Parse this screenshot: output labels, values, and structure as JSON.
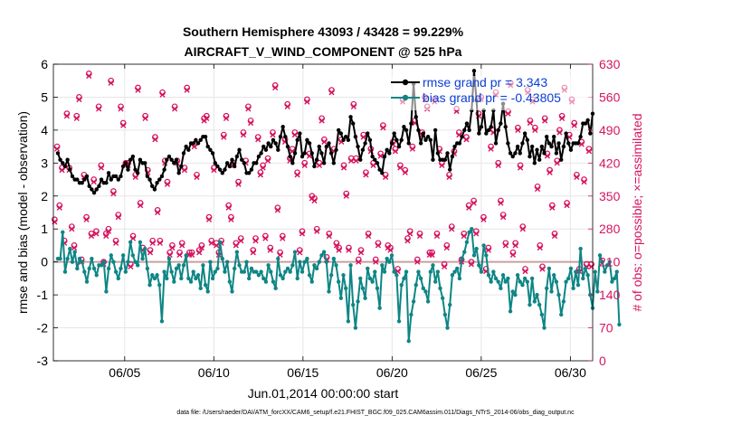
{
  "chart_data": {
    "type": "line",
    "title_line1": "Southern Hemisphere 43093 / 43428 = 99.229%",
    "title_line2": "AIRCRAFT_V_WIND_COMPONENT @ 525 hPa",
    "xlabel": "Jun.01,2014 00:00:00 start",
    "ylabel_left": "rmse and bias (model - observation)",
    "ylabel_right": "# of obs: o=possible; ×=assimilated",
    "footer": "data file: /Users/raeder/DAI/ATM_forcXX/CAM6_setup/f.e21.FHIST_BGC.f09_025.CAM6assim.011/Diags_NTrS_2014-06/obs_diag_output.nc",
    "xlim": [
      1,
      31.25
    ],
    "ylim_left": [
      -3,
      6
    ],
    "ylim_right": [
      0,
      630
    ],
    "x_ticks": [
      5,
      10,
      15,
      20,
      25,
      30
    ],
    "x_tick_labels": [
      "06/05",
      "06/10",
      "06/15",
      "06/20",
      "06/25",
      "06/30"
    ],
    "y_left_ticks": [
      -3,
      -2,
      -1,
      0,
      1,
      2,
      3,
      4,
      5,
      6
    ],
    "y_left_tick_labels": [
      "-3",
      "-2",
      "-1",
      "0",
      "1",
      "2",
      "3",
      "4",
      "5",
      "6"
    ],
    "y_right_ticks": [
      0,
      70,
      140,
      210,
      280,
      350,
      420,
      490,
      560,
      630
    ],
    "y_right_tick_labels": [
      "0",
      "70",
      "140",
      "210",
      "280",
      "350",
      "420",
      "490",
      "560",
      "630"
    ],
    "legend": [
      {
        "label": "rmse grand pr = 3.343",
        "color": "#000000"
      },
      {
        "label": "bias grand pr = -0.43805",
        "color": "#0f8585"
      }
    ],
    "colors": {
      "rmse": "#000000",
      "bias": "#0f8585",
      "obs": "#d6145f",
      "zero_line": "#c8a0a0",
      "grid": "#e6e6e6"
    },
    "rmse": [
      3.3,
      3.1,
      3.0,
      2.9,
      3.1,
      2.8,
      2.6,
      2.5,
      2.5,
      2.4,
      2.4,
      2.5,
      2.6,
      2.3,
      2.2,
      2.1,
      2.2,
      2.3,
      2.5,
      2.4,
      2.4,
      2.7,
      2.5,
      2.6,
      2.6,
      2.5,
      2.6,
      2.9,
      3.0,
      2.8,
      3.1,
      3.2,
      2.8,
      2.7,
      3.1,
      3.0,
      3.0,
      2.6,
      2.5,
      2.3,
      2.2,
      2.4,
      2.5,
      2.6,
      2.8,
      3.1,
      3.2,
      3.1,
      3.0,
      3.1,
      2.7,
      2.9,
      3.3,
      3.5,
      3.4,
      3.6,
      3.6,
      3.7,
      3.6,
      3.7,
      3.8,
      3.8,
      3.5,
      3.4,
      3.3,
      3.0,
      2.9,
      2.8,
      2.7,
      2.8,
      3.0,
      2.9,
      3.1,
      2.9,
      3.2,
      3.4,
      3.1,
      3.0,
      2.7,
      2.7,
      2.8,
      3.0,
      3.0,
      3.2,
      3.3,
      3.5,
      3.4,
      3.6,
      3.5,
      3.7,
      3.6,
      3.4,
      3.8,
      4.1,
      3.8,
      3.5,
      3.2,
      3.0,
      3.3,
      3.7,
      3.9,
      3.2,
      3.3,
      3.7,
      3.6,
      3.3,
      2.9,
      3.1,
      3.5,
      3.3,
      3.0,
      3.5,
      3.6,
      3.3,
      3.0,
      3.4,
      4.0,
      3.9,
      3.7,
      3.8,
      3.7,
      4.4,
      4.2,
      3.8,
      3.5,
      3.1,
      3.4,
      3.6,
      3.9,
      3.7,
      3.2,
      3.1,
      3.0,
      2.8,
      2.7,
      3.2,
      3.4,
      3.3,
      3.6,
      3.9,
      3.7,
      3.5,
      3.7,
      4.1,
      4.0,
      3.6,
      4.2,
      5.4,
      4.4,
      4.0,
      3.6,
      3.9,
      3.7,
      3.8,
      3.7,
      3.1,
      4.0,
      3.3,
      3.1,
      3.1,
      3.1,
      3.3,
      2.8,
      3.2,
      3.5,
      3.6,
      3.6,
      3.8,
      4.0,
      4.2,
      4.0,
      4.6,
      5.8,
      4.9,
      3.9,
      4.1,
      4.6,
      3.9,
      4.0,
      4.1,
      4.6,
      3.6,
      4.0,
      4.2,
      4.8,
      4.1,
      3.6,
      3.3,
      3.2,
      3.3,
      3.5,
      3.3,
      3.6,
      3.9,
      3.7,
      3.2,
      3.5,
      3.0,
      3.4,
      3.1,
      3.5,
      3.3,
      3.8,
      3.6,
      3.5,
      3.8,
      3.3,
      3.6,
      3.1,
      3.5,
      3.9,
      3.6,
      3.4,
      3.6,
      3.6,
      3.6,
      3.8,
      4.2,
      4.2,
      4.3,
      3.9,
      4.5
    ],
    "bias": [
      0.1,
      0.1,
      0.9,
      -0.3,
      0.1,
      0.4,
      0.0,
      0.3,
      -0.2,
      0.1,
      0.0,
      -0.3,
      -0.6,
      -0.2,
      0.1,
      -0.2,
      -0.4,
      -0.1,
      -0.1,
      0.0,
      -0.9,
      -0.2,
      0.2,
      0.0,
      -0.3,
      -0.5,
      -0.2,
      0.2,
      -0.3,
      0.0,
      0.6,
      0.2,
      0.0,
      -0.1,
      0.6,
      0.1,
      0.4,
      -0.2,
      -0.7,
      -0.4,
      -0.5,
      -0.4,
      -0.7,
      -1.8,
      -0.3,
      -0.5,
      0.1,
      -0.3,
      -0.6,
      -0.2,
      -0.1,
      -0.5,
      -0.1,
      0.2,
      -0.5,
      -0.6,
      -0.3,
      -0.5,
      -0.4,
      -0.8,
      -0.1,
      -0.7,
      -0.9,
      0.0,
      -0.5,
      -0.3,
      -0.2,
      0.6,
      0.1,
      -0.3,
      0.0,
      -0.6,
      -0.9,
      -0.2,
      0.3,
      -0.1,
      -0.3,
      -0.3,
      0.0,
      -0.5,
      -0.2,
      -0.3,
      -0.3,
      -0.4,
      -0.3,
      -0.5,
      -0.6,
      -0.1,
      -0.3,
      -0.6,
      -0.8,
      0.1,
      -0.4,
      -0.5,
      -0.3,
      -0.2,
      -0.3,
      -0.1,
      0.3,
      -0.5,
      0.0,
      -0.3,
      0.0,
      0.1,
      -0.4,
      -0.6,
      -0.1,
      -0.2,
      0.0,
      0.2,
      0.3,
      0.0,
      -0.9,
      -0.4,
      0.1,
      -0.1,
      -0.6,
      -1.1,
      -0.4,
      -0.8,
      -1.8,
      -0.1,
      -1.3,
      -2.0,
      -1.2,
      -0.5,
      -0.8,
      -1.1,
      -0.2,
      -0.5,
      -0.6,
      -0.3,
      -0.8,
      -1.4,
      -0.1,
      -0.3,
      0.1,
      0.0,
      0.2,
      -0.3,
      -0.4,
      -1.8,
      -0.7,
      -0.5,
      -0.3,
      -2.4,
      -1.6,
      -1.2,
      -0.7,
      -0.3,
      -0.5,
      -0.8,
      -0.9,
      -1.2,
      -0.3,
      -0.1,
      -0.6,
      -0.3,
      -0.8,
      -1.1,
      -1.6,
      -2.0,
      -1.3,
      -0.4,
      -0.3,
      -0.2,
      -0.5,
      0.1,
      0.3,
      0.6,
      0.9,
      1.0,
      0.2,
      0.4,
      -0.1,
      -0.3,
      0.5,
      0.2,
      -0.4,
      -0.6,
      -0.3,
      -0.5,
      -0.6,
      -0.8,
      -0.4,
      -0.6,
      -0.5,
      -1.5,
      -0.9,
      -1.0,
      -0.4,
      -0.6,
      -0.7,
      -0.5,
      -0.6,
      -1.3,
      -0.5,
      -1.2,
      -1.0,
      -1.3,
      -1.6,
      -2.0,
      -0.8,
      -0.2,
      -0.9,
      -0.4,
      -0.6,
      -1.0,
      -1.6,
      -1.2,
      -0.6,
      -0.5,
      -0.2,
      -0.8,
      -0.3,
      -0.7,
      0.4,
      -0.5,
      -0.2,
      -0.4,
      -1.0,
      -1.4,
      -0.3,
      -0.9,
      0.2,
      0.0,
      -0.3,
      -0.1,
      0.0,
      -0.6,
      -0.5,
      -0.3,
      -1.9
    ],
    "obs_possible": [
      300,
      455,
      330,
      410,
      255,
      525,
      410,
      285,
      245,
      520,
      560,
      215,
      395,
      305,
      610,
      270,
      385,
      275,
      540,
      415,
      210,
      270,
      280,
      595,
      360,
      255,
      310,
      540,
      505,
      420,
      420,
      205,
      265,
      395,
      580,
      335,
      240,
      520,
      405,
      235,
      255,
      475,
      320,
      255,
      570,
      425,
      380,
      230,
      245,
      540,
      425,
      230,
      250,
      410,
      580,
      230,
      230,
      460,
      395,
      235,
      245,
      515,
      520,
      305,
      255,
      410,
      250,
      230,
      255,
      480,
      520,
      330,
      305,
      420,
      250,
      380,
      260,
      485,
      425,
      540,
      510,
      235,
      260,
      475,
      400,
      415,
      265,
      430,
      240,
      485,
      585,
      325,
      230,
      265,
      470,
      545,
      430,
      450,
      485,
      400,
      235,
      275,
      420,
      555,
      440,
      350,
      345,
      280,
      420,
      515,
      470,
      220,
      270,
      575,
      450,
      250,
      240,
      470,
      415,
      355,
      240,
      430,
      545,
      430,
      215,
      235,
      480,
      400,
      270,
      450,
      420,
      215,
      250,
      440,
      500,
      395,
      245,
      240,
      465,
      450,
      195,
      415,
      555,
      405,
      260,
      275,
      455,
      510,
      215,
      270,
      485,
      560,
      540,
      230,
      230,
      555,
      270,
      450,
      420,
      205,
      245,
      395,
      285,
      445,
      535,
      485,
      215,
      270,
      475,
      330,
      210,
      340,
      275,
      525,
      560,
      305,
      195,
      240,
      455,
      490,
      570,
      420,
      340,
      310,
      250,
      530,
      590,
      230,
      250,
      495,
      415,
      285,
      195,
      575,
      510,
      555,
      495,
      370,
      245,
      200,
      515,
      440,
      405,
      330,
      270,
      425,
      490,
      520,
      580,
      335,
      480,
      555,
      505,
      395,
      195,
      465,
      385,
      205,
      450,
      205
    ],
    "obs_assimilated": [
      295,
      450,
      325,
      405,
      250,
      520,
      405,
      280,
      240,
      515,
      555,
      210,
      390,
      300,
      605,
      265,
      380,
      270,
      535,
      410,
      205,
      265,
      275,
      590,
      355,
      250,
      305,
      535,
      500,
      415,
      415,
      200,
      260,
      390,
      575,
      330,
      235,
      515,
      400,
      230,
      250,
      470,
      315,
      250,
      565,
      420,
      375,
      225,
      240,
      535,
      420,
      225,
      245,
      405,
      575,
      225,
      225,
      455,
      390,
      230,
      240,
      510,
      515,
      300,
      250,
      405,
      245,
      225,
      250,
      475,
      515,
      325,
      300,
      415,
      245,
      375,
      255,
      480,
      420,
      535,
      505,
      230,
      255,
      470,
      395,
      410,
      260,
      425,
      235,
      480,
      580,
      320,
      225,
      260,
      465,
      540,
      425,
      445,
      480,
      395,
      230,
      270,
      415,
      550,
      435,
      345,
      340,
      275,
      415,
      510,
      465,
      215,
      265,
      570,
      445,
      245,
      235,
      465,
      410,
      350,
      235,
      425,
      540,
      425,
      210,
      230,
      475,
      395,
      265,
      445,
      415,
      210,
      245,
      435,
      495,
      390,
      240,
      235,
      460,
      445,
      190,
      410,
      550,
      400,
      255,
      270,
      450,
      505,
      210,
      265,
      480,
      555,
      535,
      225,
      225,
      550,
      265,
      445,
      415,
      200,
      240,
      390,
      280,
      440,
      530,
      480,
      210,
      265,
      470,
      325,
      205,
      335,
      270,
      520,
      555,
      300,
      190,
      235,
      450,
      485,
      565,
      415,
      335,
      305,
      245,
      525,
      585,
      225,
      245,
      490,
      410,
      280,
      190,
      570,
      505,
      550,
      490,
      365,
      240,
      195,
      510,
      435,
      400,
      325,
      265,
      420,
      485,
      515,
      575,
      330,
      475,
      550,
      500,
      390,
      190,
      460,
      380,
      200,
      445,
      200
    ]
  }
}
